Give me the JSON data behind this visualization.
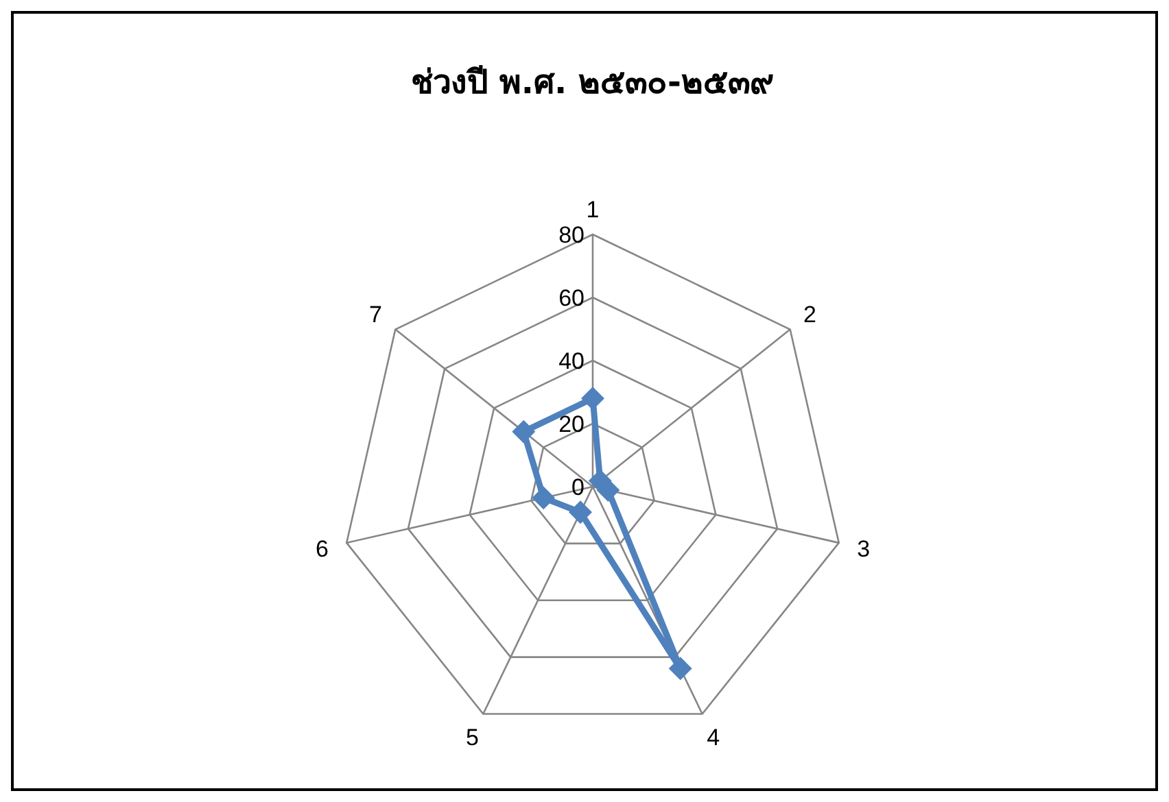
{
  "chart_data": {
    "type": "radar",
    "title": "ช่วงปี พ.ศ. ๒๕๓๐-๒๕๓๙",
    "categories": [
      "1",
      "2",
      "3",
      "4",
      "5",
      "6",
      "7"
    ],
    "series": [
      {
        "color": "#4f81bd",
        "values": [
          28,
          3,
          5,
          64,
          9,
          16,
          28
        ]
      }
    ],
    "ylim": [
      0,
      80
    ],
    "yticks": [
      0,
      20,
      40,
      60,
      80
    ],
    "grid": true,
    "marker": "diamond"
  }
}
